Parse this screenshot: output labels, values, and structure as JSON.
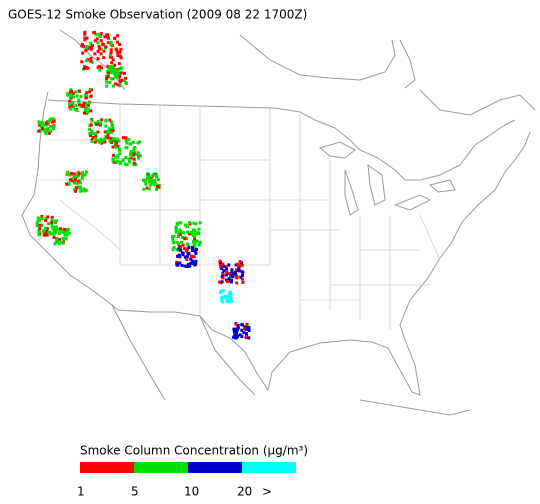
{
  "title": "GOES-12 Smoke Observation (2009 08 22  1700Z)",
  "legend": {
    "label": "Smoke Column Concentration (μg/m³)",
    "colors": [
      "#ff0000",
      "#00e000",
      "#0000cc",
      "#00ffff"
    ],
    "ticks": [
      "1",
      "5",
      "10",
      "20",
      ">"
    ]
  }
}
